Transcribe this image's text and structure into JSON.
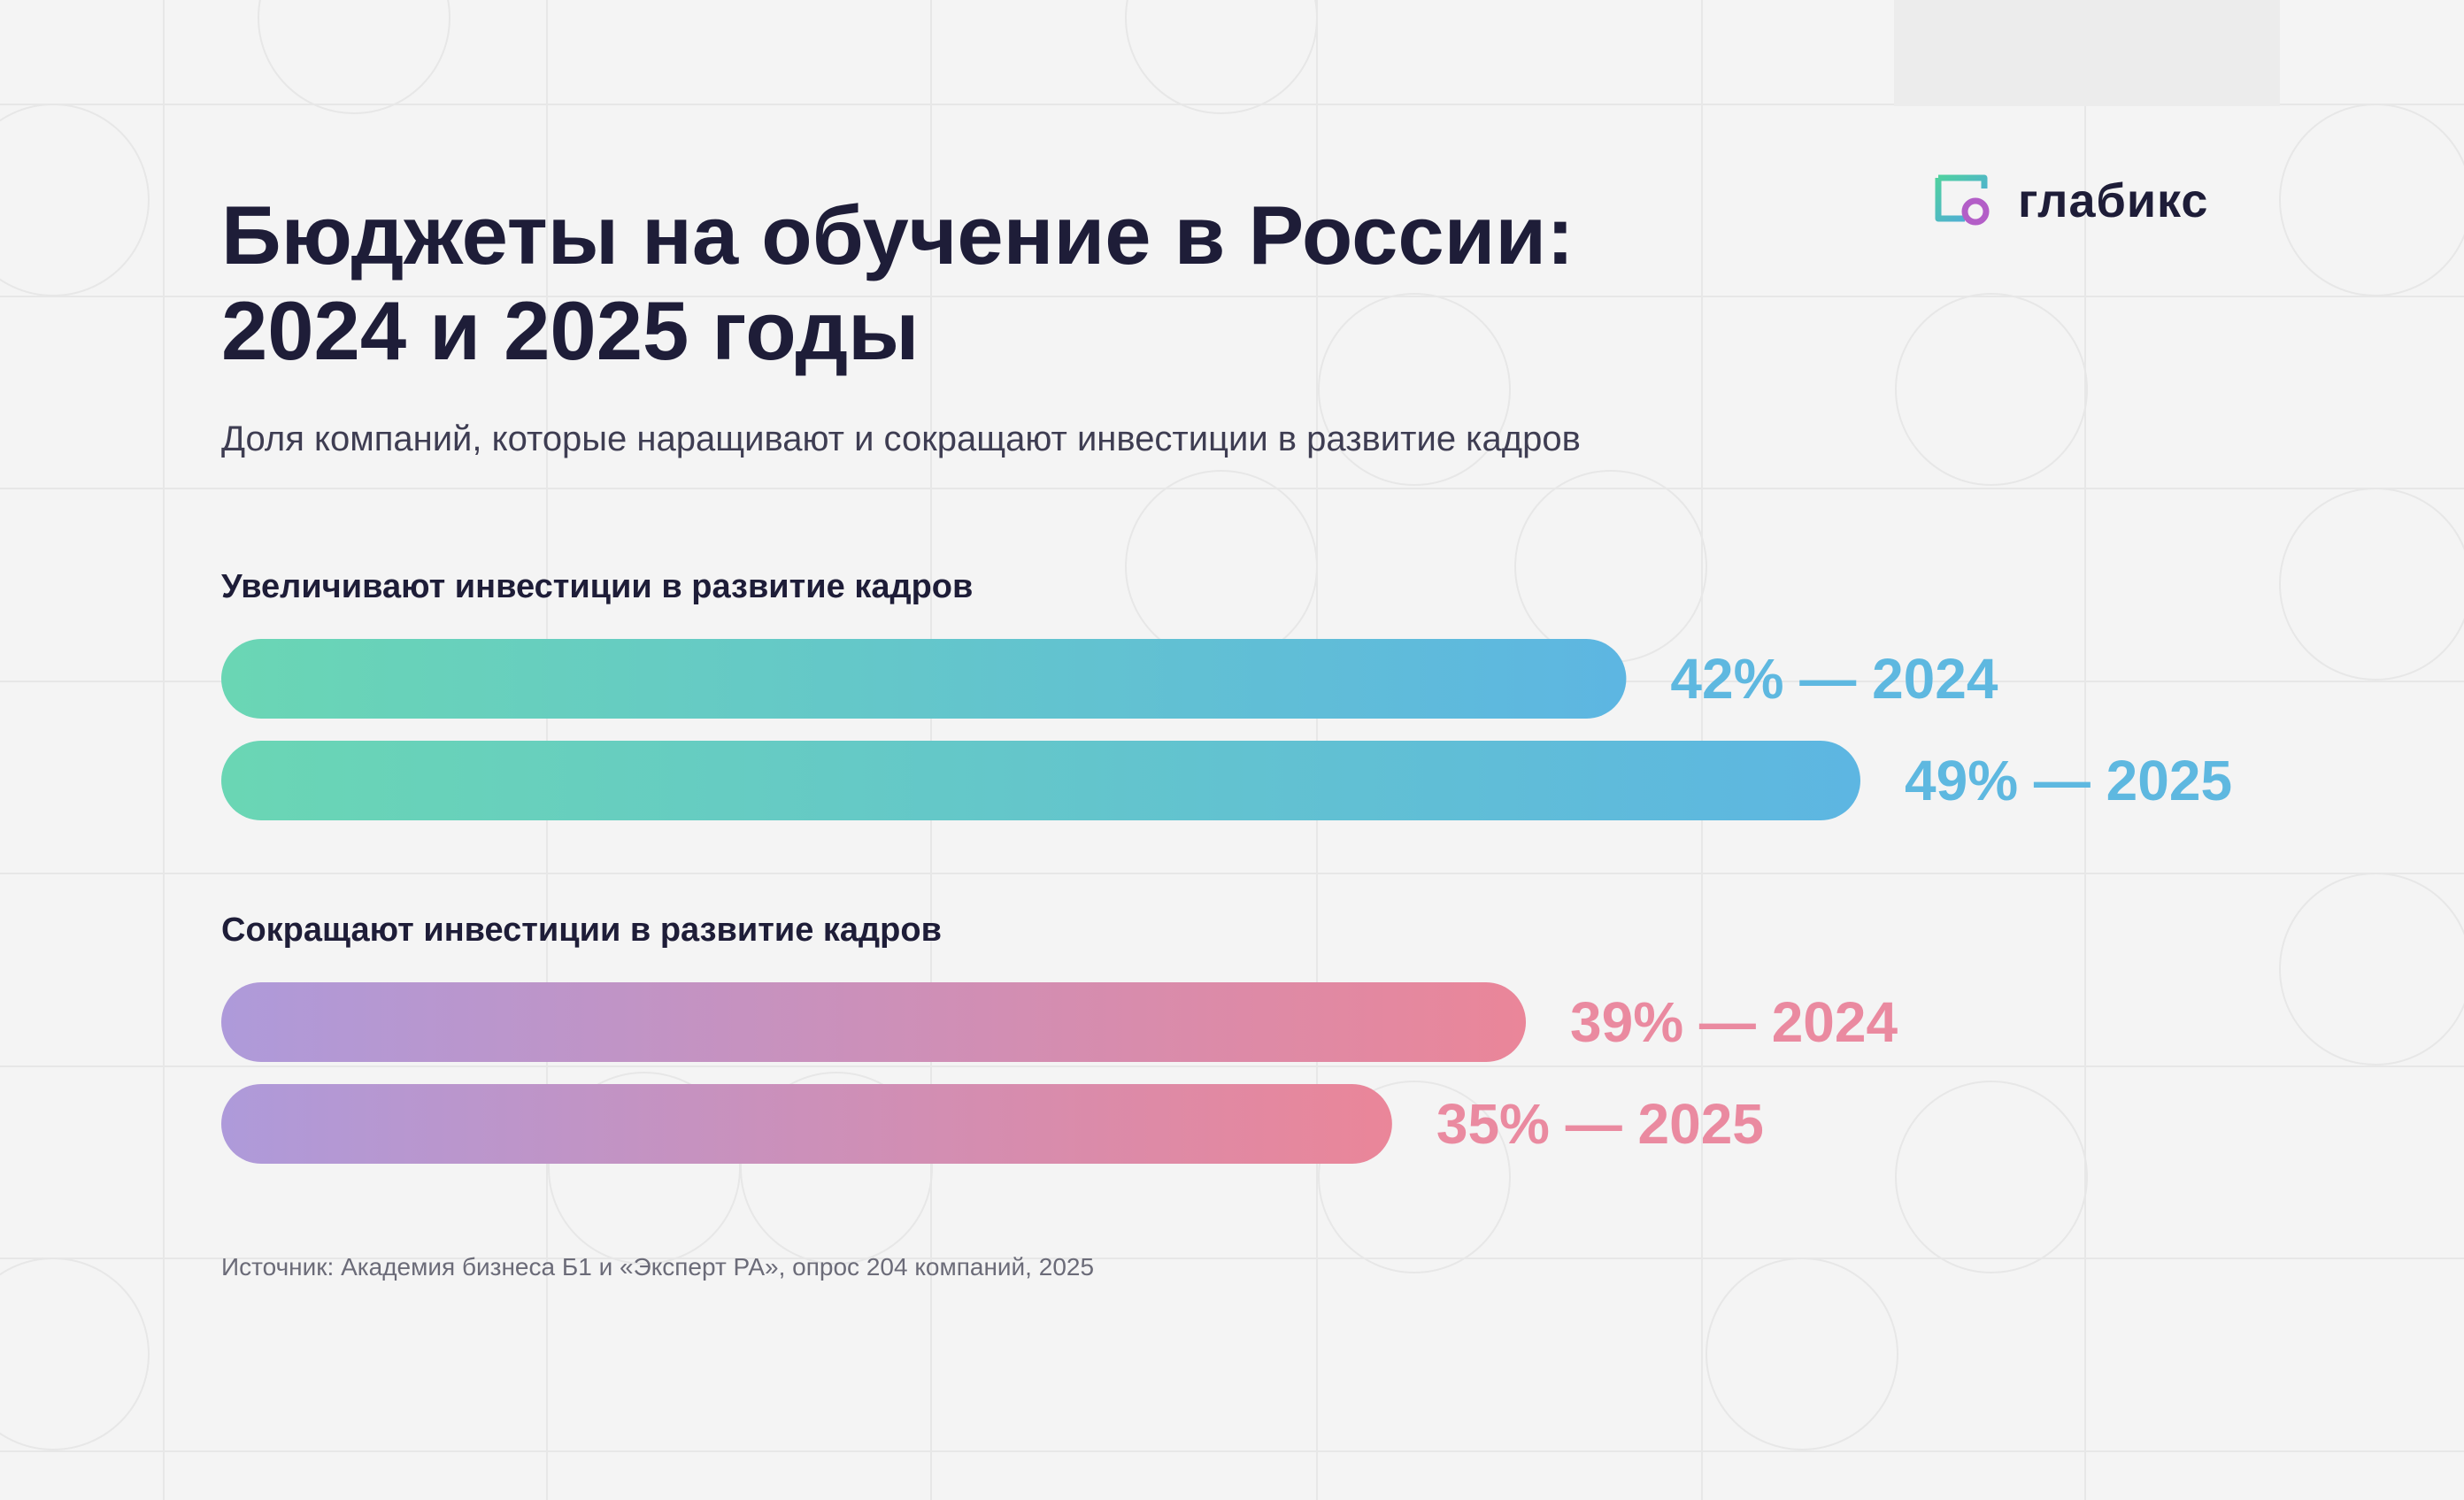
{
  "brand": {
    "name": "глабикс",
    "logo_icon": "glabiks-logo-icon"
  },
  "title_lines": [
    "Бюджеты на обучение в России:",
    "2024 и 2025 годы"
  ],
  "subtitle": "Доля компаний, которые наращивают и сокращают инвестиции в развитие кадров",
  "source": "Источник: Академия бизнеса Б1 и «Эксперт РА», опрос 204 компаний, 2025",
  "colors": {
    "background": "#f4f4f4",
    "text_dark": "#1e1d38",
    "increase_start": "#6ad6b4",
    "increase_end": "#5db6e2",
    "increase_label": "#5eb8e0",
    "decrease_start": "#ae9ada",
    "decrease_end": "#ea8699",
    "decrease_label": "#ea8aa0"
  },
  "chart_data": {
    "type": "bar",
    "orientation": "horizontal",
    "unit": "%",
    "xlim": [
      0,
      49
    ],
    "groups": [
      {
        "name": "Увеличивают инвестиции в развитие кадров",
        "bars": [
          {
            "year": "2024",
            "value": 42,
            "label": "42% — 2024"
          },
          {
            "year": "2025",
            "value": 49,
            "label": "49% — 2025"
          }
        ]
      },
      {
        "name": "Сокращают инвестиции в развитие кадров",
        "bars": [
          {
            "year": "2024",
            "value": 39,
            "label": "39% — 2024"
          },
          {
            "year": "2025",
            "value": 35,
            "label": "35% — 2025"
          }
        ]
      }
    ]
  }
}
